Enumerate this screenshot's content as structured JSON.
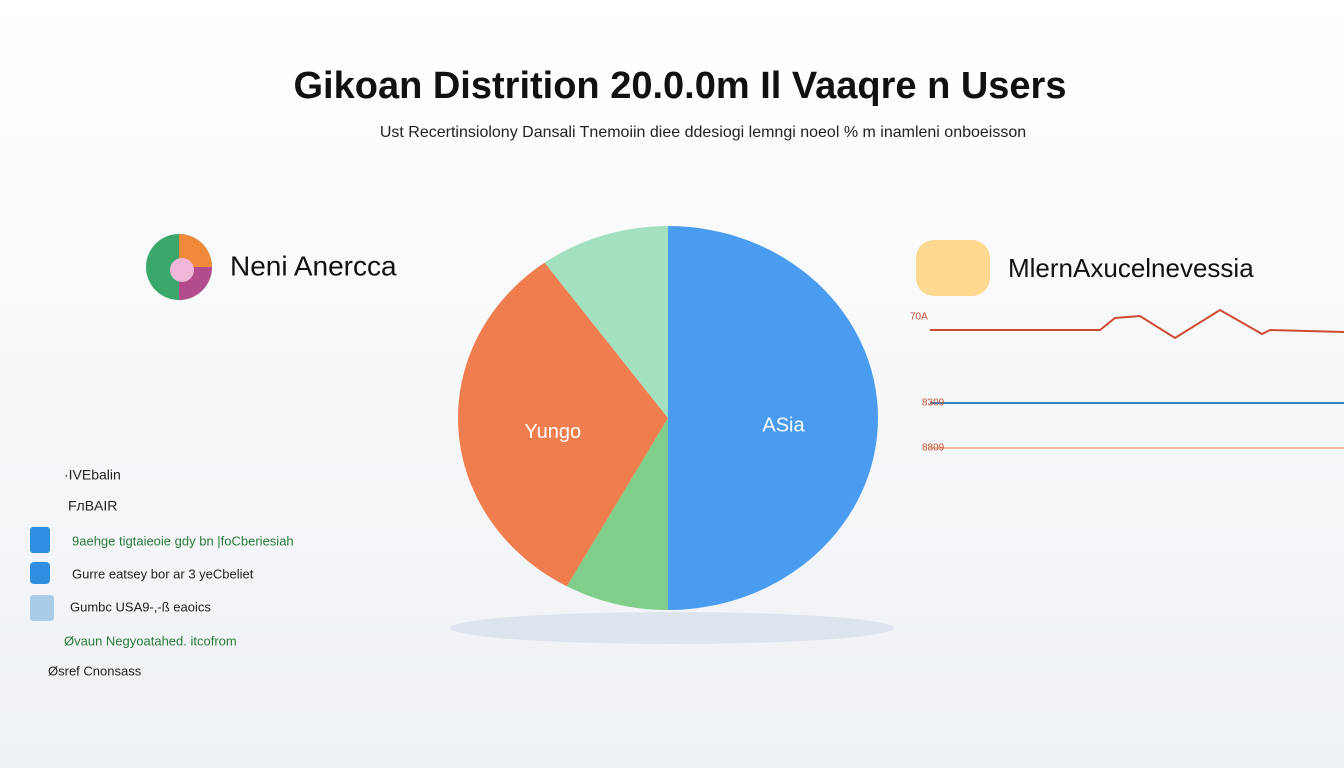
{
  "header": {
    "title": "Gikoan Distrition 20.0.0m Il Vaaqre n Users",
    "subtitle": "Ust Recertinsiolony Dansali Tnemoiin diee  ddesiogi lemngi noeol % m inamleni onboeisson"
  },
  "left_callout": {
    "label": "Neni Anercca"
  },
  "right_callout": {
    "label": "MlernAxucelnevessia",
    "line_labels": [
      "70A",
      "8309",
      "8809"
    ]
  },
  "legend_list": {
    "items": [
      "·IVEbalin",
      "FлBAIR",
      "9aehge tigtaieoie gdy bn |foCberiesiah",
      "Gurre eatsey bor ar 3 yeCbeliet",
      "Gumbc USA9-,-ß eaoics",
      "Øvaun Negyoatahed. itcofrom",
      "Øsref Cnonsass"
    ]
  },
  "chart_data": {
    "type": "pie",
    "categories": [
      "ASia",
      null,
      "Yungo",
      null
    ],
    "values": [
      50,
      8,
      32,
      10
    ],
    "colors": [
      "#4a9cf0",
      "#7fcf8a",
      "#ef7d4e",
      "#a3e0c0"
    ]
  }
}
